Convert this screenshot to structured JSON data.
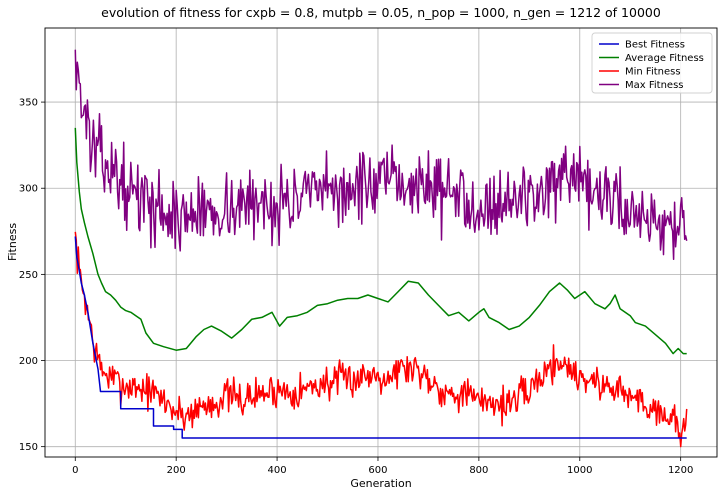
{
  "chart_data": {
    "type": "line",
    "title": "evolution of fitness for cxpb = 0.8, mutpb = 0.05, n_pop = 1000, n_gen = 1212 of 10000",
    "xlabel": "Generation",
    "ylabel": "Fitness",
    "xlim": [
      -60,
      1272
    ],
    "ylim": [
      144,
      393
    ],
    "xticks": [
      0,
      200,
      400,
      600,
      800,
      1000,
      1200
    ],
    "yticks": [
      150,
      200,
      250,
      300,
      350
    ],
    "grid": true,
    "legend": "top-right",
    "series": [
      {
        "name": "Best Fitness",
        "color": "#0000cc",
        "step": true,
        "points": [
          [
            0,
            272
          ],
          [
            3,
            260
          ],
          [
            8,
            252
          ],
          [
            12,
            245
          ],
          [
            18,
            238
          ],
          [
            25,
            228
          ],
          [
            35,
            210
          ],
          [
            45,
            195
          ],
          [
            50,
            182
          ],
          [
            90,
            182
          ],
          [
            90,
            172
          ],
          [
            155,
            172
          ],
          [
            155,
            162
          ],
          [
            195,
            162
          ],
          [
            195,
            160
          ],
          [
            212,
            160
          ],
          [
            212,
            155
          ],
          [
            1212,
            155
          ]
        ]
      },
      {
        "name": "Average Fitness",
        "color": "#008000",
        "step": false,
        "points": [
          [
            0,
            335
          ],
          [
            3,
            315
          ],
          [
            8,
            298
          ],
          [
            12,
            288
          ],
          [
            18,
            280
          ],
          [
            25,
            272
          ],
          [
            35,
            262
          ],
          [
            45,
            250
          ],
          [
            52,
            245
          ],
          [
            60,
            240
          ],
          [
            70,
            238
          ],
          [
            80,
            235
          ],
          [
            90,
            231
          ],
          [
            100,
            229
          ],
          [
            110,
            228
          ],
          [
            120,
            226
          ],
          [
            130,
            224
          ],
          [
            140,
            216
          ],
          [
            155,
            210
          ],
          [
            175,
            208
          ],
          [
            200,
            206
          ],
          [
            220,
            207
          ],
          [
            240,
            214
          ],
          [
            255,
            218
          ],
          [
            270,
            220
          ],
          [
            290,
            217
          ],
          [
            310,
            213
          ],
          [
            330,
            218
          ],
          [
            350,
            224
          ],
          [
            370,
            225
          ],
          [
            390,
            228
          ],
          [
            405,
            220
          ],
          [
            420,
            225
          ],
          [
            440,
            226
          ],
          [
            460,
            228
          ],
          [
            480,
            232
          ],
          [
            500,
            233
          ],
          [
            520,
            235
          ],
          [
            540,
            236
          ],
          [
            560,
            236
          ],
          [
            580,
            238
          ],
          [
            600,
            236
          ],
          [
            620,
            234
          ],
          [
            640,
            240
          ],
          [
            660,
            246
          ],
          [
            680,
            245
          ],
          [
            700,
            238
          ],
          [
            720,
            232
          ],
          [
            740,
            226
          ],
          [
            760,
            228
          ],
          [
            780,
            223
          ],
          [
            800,
            228
          ],
          [
            810,
            230
          ],
          [
            820,
            225
          ],
          [
            840,
            222
          ],
          [
            860,
            218
          ],
          [
            880,
            220
          ],
          [
            900,
            225
          ],
          [
            920,
            232
          ],
          [
            940,
            240
          ],
          [
            960,
            245
          ],
          [
            975,
            241
          ],
          [
            990,
            236
          ],
          [
            1010,
            240
          ],
          [
            1030,
            233
          ],
          [
            1050,
            230
          ],
          [
            1060,
            233
          ],
          [
            1070,
            238
          ],
          [
            1080,
            230
          ],
          [
            1100,
            226
          ],
          [
            1110,
            222
          ],
          [
            1130,
            220
          ],
          [
            1150,
            215
          ],
          [
            1170,
            210
          ],
          [
            1185,
            204
          ],
          [
            1195,
            207
          ],
          [
            1205,
            204
          ],
          [
            1212,
            204
          ]
        ]
      },
      {
        "name": "Min Fitness",
        "color": "#ff0000",
        "step": false,
        "base": [
          [
            0,
            272
          ],
          [
            5,
            258
          ],
          [
            10,
            248
          ],
          [
            20,
            235
          ],
          [
            30,
            220
          ],
          [
            40,
            205
          ],
          [
            50,
            196
          ],
          [
            60,
            192
          ],
          [
            80,
            188
          ],
          [
            100,
            185
          ],
          [
            120,
            185
          ],
          [
            140,
            183
          ],
          [
            160,
            180
          ],
          [
            180,
            176
          ],
          [
            200,
            170
          ],
          [
            220,
            168
          ],
          [
            240,
            172
          ],
          [
            260,
            174
          ],
          [
            280,
            176
          ],
          [
            300,
            180
          ],
          [
            330,
            177
          ],
          [
            360,
            180
          ],
          [
            400,
            183
          ],
          [
            440,
            182
          ],
          [
            480,
            186
          ],
          [
            520,
            188
          ],
          [
            560,
            190
          ],
          [
            600,
            193
          ],
          [
            620,
            190
          ],
          [
            640,
            195
          ],
          [
            660,
            196
          ],
          [
            680,
            195
          ],
          [
            700,
            190
          ],
          [
            720,
            185
          ],
          [
            740,
            180
          ],
          [
            760,
            182
          ],
          [
            780,
            180
          ],
          [
            800,
            175
          ],
          [
            820,
            178
          ],
          [
            840,
            174
          ],
          [
            860,
            176
          ],
          [
            880,
            178
          ],
          [
            900,
            183
          ],
          [
            920,
            190
          ],
          [
            940,
            196
          ],
          [
            960,
            200
          ],
          [
            975,
            197
          ],
          [
            990,
            192
          ],
          [
            1010,
            190
          ],
          [
            1030,
            188
          ],
          [
            1050,
            184
          ],
          [
            1070,
            186
          ],
          [
            1090,
            180
          ],
          [
            1110,
            178
          ],
          [
            1130,
            175
          ],
          [
            1150,
            172
          ],
          [
            1170,
            170
          ],
          [
            1185,
            165
          ],
          [
            1200,
            160
          ],
          [
            1212,
            168
          ]
        ],
        "noise": 5,
        "seed": 7
      },
      {
        "name": "Max Fitness",
        "color": "#800080",
        "step": false,
        "base": [
          [
            0,
            382
          ],
          [
            5,
            368
          ],
          [
            10,
            355
          ],
          [
            20,
            340
          ],
          [
            30,
            330
          ],
          [
            40,
            320
          ],
          [
            60,
            315
          ],
          [
            80,
            308
          ],
          [
            100,
            300
          ],
          [
            120,
            296
          ],
          [
            140,
            292
          ],
          [
            160,
            290
          ],
          [
            180,
            285
          ],
          [
            200,
            282
          ],
          [
            220,
            284
          ],
          [
            250,
            286
          ],
          [
            300,
            289
          ],
          [
            350,
            290
          ],
          [
            400,
            292
          ],
          [
            450,
            294
          ],
          [
            500,
            297
          ],
          [
            550,
            300
          ],
          [
            600,
            302
          ],
          [
            650,
            303
          ],
          [
            700,
            302
          ],
          [
            750,
            296
          ],
          [
            800,
            291
          ],
          [
            850,
            292
          ],
          [
            900,
            296
          ],
          [
            950,
            302
          ],
          [
            1000,
            300
          ],
          [
            1050,
            295
          ],
          [
            1100,
            288
          ],
          [
            1150,
            282
          ],
          [
            1200,
            278
          ],
          [
            1212,
            274
          ]
        ],
        "noise": 10,
        "seed": 13
      }
    ]
  }
}
